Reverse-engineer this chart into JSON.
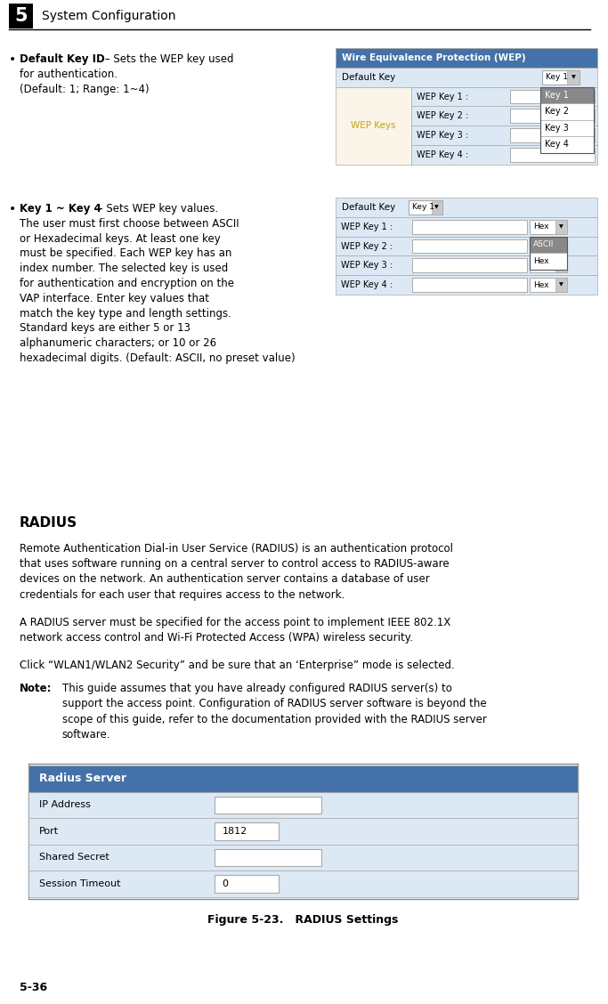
{
  "page_width": 6.83,
  "page_height": 11.28,
  "bg_color": "#ffffff",
  "header_number": "5",
  "header_text": "System Configuration",
  "footer_text": "5-36",
  "wep_header_text": "Wire Equivalence Protection (WEP)",
  "wep_header_color": "#4472a8",
  "wep_header_text_color": "#ffffff",
  "wep_row_bg_light": "#dce9f5",
  "wep_row_bg_cream": "#faf5e8",
  "wep_keys_text_color": "#c8a000",
  "wep_border_color": "#aaaaaa",
  "wep_dropdown_selected_bg": "#808080",
  "radius_header_color": "#4472a8",
  "radius_row_bg": "#dce9f5",
  "radius_border_color": "#aaaaaa",
  "text_color": "#000000",
  "body_font_size": 8.5,
  "small_font_size": 7.5,
  "note_indent": 0.55,
  "figure_caption": "Figure 5-23.   RADIUS Settings"
}
